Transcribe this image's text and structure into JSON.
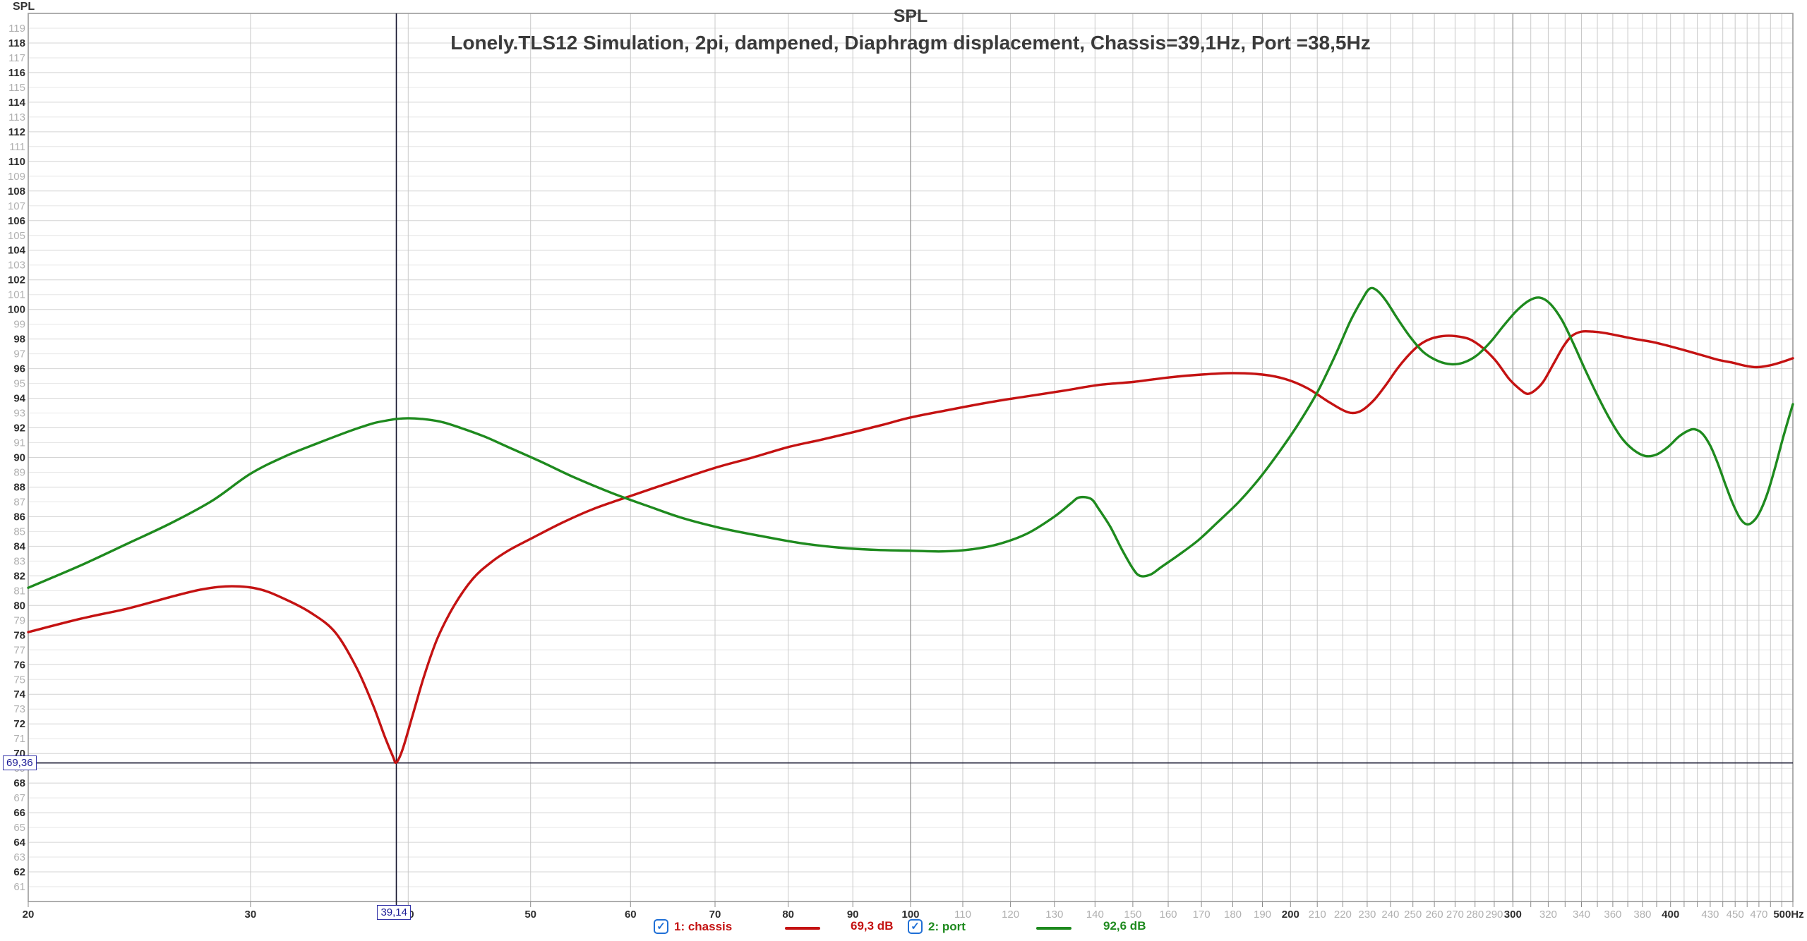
{
  "header": {
    "axis_unit_label": "SPL",
    "title": "SPL",
    "subtitle": "Lonely.TLS12 Simulation, 2pi, dampened, Diaphragm displacement, Chassis=39,1Hz, Port =38,5Hz"
  },
  "colors": {
    "chassis": "#c41212",
    "port": "#1e8a1e",
    "grid_light_h": "#e6e6e6",
    "grid_dark_h": "#d4d4d4",
    "grid_v": "#c9c9c9",
    "grid_v_major": "#9b9b9b",
    "border": "#9a9a9a",
    "cursor": "#15152e",
    "label_dark": "#2e2e2e",
    "label_gray": "#b0b0b0",
    "checkbox_blue": "#1f6fd6",
    "cursor_text": "#1c1c96",
    "title_color": "#3a3a3a"
  },
  "cursor": {
    "freq_hz": 39.14,
    "level_db": 69.36,
    "freq_label": "39,14",
    "level_label": "69,36"
  },
  "legend": [
    {
      "label": "1: chassis",
      "value": "69,3 dB",
      "checked": true
    },
    {
      "label": "2: port",
      "value": "92,6 dB",
      "checked": true
    }
  ],
  "chart_data": {
    "type": "line",
    "title": "SPL",
    "subtitle": "Lonely.TLS12 Simulation, 2pi, dampened, Diaphragm displacement, Chassis=39,1Hz, Port =38,5Hz",
    "xlabel": "Hz",
    "ylabel": "SPL",
    "x_scale": "log",
    "xlim": [
      20,
      500
    ],
    "ylim": [
      60,
      120
    ],
    "grid": true,
    "legend_position": "bottom",
    "y_ticks": [
      61,
      62,
      63,
      64,
      65,
      66,
      67,
      68,
      69,
      70,
      71,
      72,
      73,
      74,
      75,
      76,
      77,
      78,
      79,
      80,
      81,
      82,
      83,
      84,
      85,
      86,
      87,
      88,
      89,
      90,
      91,
      92,
      93,
      94,
      95,
      96,
      97,
      98,
      99,
      100,
      101,
      102,
      103,
      104,
      105,
      106,
      107,
      108,
      109,
      110,
      111,
      112,
      113,
      114,
      115,
      116,
      117,
      118,
      119
    ],
    "x_tick_labels": [
      {
        "f": 20,
        "t": "20",
        "dark": true
      },
      {
        "f": 30,
        "t": "30",
        "dark": true
      },
      {
        "f": 40,
        "t": "40",
        "dark": true
      },
      {
        "f": 50,
        "t": "50",
        "dark": true
      },
      {
        "f": 60,
        "t": "60",
        "dark": true
      },
      {
        "f": 70,
        "t": "70",
        "dark": true
      },
      {
        "f": 80,
        "t": "80",
        "dark": true
      },
      {
        "f": 90,
        "t": "90",
        "dark": true
      },
      {
        "f": 100,
        "t": "100",
        "dark": true
      },
      {
        "f": 110,
        "t": "110",
        "dark": false
      },
      {
        "f": 120,
        "t": "120",
        "dark": false
      },
      {
        "f": 130,
        "t": "130",
        "dark": false
      },
      {
        "f": 140,
        "t": "140",
        "dark": false
      },
      {
        "f": 150,
        "t": "150",
        "dark": false
      },
      {
        "f": 160,
        "t": "160",
        "dark": false
      },
      {
        "f": 170,
        "t": "170",
        "dark": false
      },
      {
        "f": 180,
        "t": "180",
        "dark": false
      },
      {
        "f": 190,
        "t": "190",
        "dark": false
      },
      {
        "f": 200,
        "t": "200",
        "dark": true
      },
      {
        "f": 210,
        "t": "210",
        "dark": false
      },
      {
        "f": 220,
        "t": "220",
        "dark": false
      },
      {
        "f": 230,
        "t": "230",
        "dark": false
      },
      {
        "f": 240,
        "t": "240",
        "dark": false
      },
      {
        "f": 250,
        "t": "250",
        "dark": false
      },
      {
        "f": 260,
        "t": "260",
        "dark": false
      },
      {
        "f": 270,
        "t": "270",
        "dark": false
      },
      {
        "f": 280,
        "t": "280",
        "dark": false
      },
      {
        "f": 290,
        "t": "290",
        "dark": false
      },
      {
        "f": 300,
        "t": "300",
        "dark": true
      },
      {
        "f": 320,
        "t": "320",
        "dark": false
      },
      {
        "f": 340,
        "t": "340",
        "dark": false
      },
      {
        "f": 360,
        "t": "360",
        "dark": false
      },
      {
        "f": 380,
        "t": "380",
        "dark": false
      },
      {
        "f": 400,
        "t": "400",
        "dark": true
      },
      {
        "f": 430,
        "t": "430",
        "dark": false
      },
      {
        "f": 450,
        "t": "450",
        "dark": false
      },
      {
        "f": 470,
        "t": "470",
        "dark": false
      },
      {
        "f": 500,
        "t": "500Hz",
        "dark": true
      }
    ],
    "x_gridlines": [
      30,
      40,
      50,
      60,
      70,
      80,
      90,
      100,
      110,
      120,
      130,
      140,
      150,
      160,
      170,
      180,
      190,
      200,
      210,
      220,
      230,
      240,
      250,
      260,
      270,
      280,
      290,
      300,
      310,
      320,
      330,
      340,
      350,
      360,
      370,
      380,
      390,
      400,
      410,
      420,
      430,
      440,
      450,
      460,
      470,
      480,
      490
    ],
    "x_gridlines_major": [
      100,
      300
    ],
    "cursor": {
      "freq_hz": 39.14,
      "level_db": 69.36
    },
    "series": [
      {
        "name": "1: chassis",
        "color": "#c41212",
        "cursor_value_db": 69.3,
        "points": [
          [
            20,
            78.2
          ],
          [
            22,
            79.1
          ],
          [
            24,
            79.8
          ],
          [
            26,
            80.6
          ],
          [
            27.5,
            81.1
          ],
          [
            29,
            81.3
          ],
          [
            30.5,
            81.1
          ],
          [
            32,
            80.4
          ],
          [
            33.5,
            79.5
          ],
          [
            35,
            78.2
          ],
          [
            36.4,
            75.8
          ],
          [
            37.5,
            73.3
          ],
          [
            38.3,
            71.2
          ],
          [
            38.9,
            69.8
          ],
          [
            39.14,
            69.4
          ],
          [
            39.6,
            70.3
          ],
          [
            40.3,
            72.5
          ],
          [
            41.2,
            75.3
          ],
          [
            42.2,
            77.8
          ],
          [
            43.5,
            80.0
          ],
          [
            45,
            81.8
          ],
          [
            46.5,
            82.9
          ],
          [
            48,
            83.7
          ],
          [
            50,
            84.5
          ],
          [
            53,
            85.6
          ],
          [
            56,
            86.5
          ],
          [
            60,
            87.4
          ],
          [
            65,
            88.4
          ],
          [
            70,
            89.3
          ],
          [
            75,
            90.0
          ],
          [
            80,
            90.7
          ],
          [
            85,
            91.2
          ],
          [
            90,
            91.7
          ],
          [
            95,
            92.2
          ],
          [
            100,
            92.7
          ],
          [
            107,
            93.2
          ],
          [
            115,
            93.7
          ],
          [
            123,
            94.1
          ],
          [
            132,
            94.5
          ],
          [
            141,
            94.9
          ],
          [
            150,
            95.1
          ],
          [
            160,
            95.4
          ],
          [
            170,
            95.6
          ],
          [
            180,
            95.7
          ],
          [
            190,
            95.6
          ],
          [
            198,
            95.3
          ],
          [
            206,
            94.7
          ],
          [
            214,
            93.8
          ],
          [
            220,
            93.2
          ],
          [
            224,
            93.0
          ],
          [
            228,
            93.2
          ],
          [
            233,
            93.9
          ],
          [
            238,
            94.9
          ],
          [
            243,
            96.0
          ],
          [
            248,
            96.9
          ],
          [
            253,
            97.6
          ],
          [
            258,
            98.0
          ],
          [
            264,
            98.2
          ],
          [
            270,
            98.2
          ],
          [
            277,
            98.0
          ],
          [
            284,
            97.4
          ],
          [
            291,
            96.5
          ],
          [
            298,
            95.3
          ],
          [
            304,
            94.6
          ],
          [
            308,
            94.3
          ],
          [
            312,
            94.5
          ],
          [
            317,
            95.1
          ],
          [
            323,
            96.3
          ],
          [
            329,
            97.5
          ],
          [
            334,
            98.2
          ],
          [
            340,
            98.5
          ],
          [
            347,
            98.5
          ],
          [
            355,
            98.4
          ],
          [
            365,
            98.2
          ],
          [
            375,
            98.0
          ],
          [
            387,
            97.8
          ],
          [
            400,
            97.5
          ],
          [
            412,
            97.2
          ],
          [
            424,
            96.9
          ],
          [
            436,
            96.6
          ],
          [
            448,
            96.4
          ],
          [
            458,
            96.2
          ],
          [
            468,
            96.1
          ],
          [
            478,
            96.2
          ],
          [
            488,
            96.4
          ],
          [
            500,
            96.7
          ]
        ]
      },
      {
        "name": "2: port",
        "color": "#1e8a1e",
        "cursor_value_db": 92.6,
        "points": [
          [
            20,
            81.2
          ],
          [
            22,
            82.7
          ],
          [
            24,
            84.2
          ],
          [
            26,
            85.6
          ],
          [
            28,
            87.1
          ],
          [
            30,
            88.9
          ],
          [
            32,
            90.1
          ],
          [
            34,
            91.0
          ],
          [
            36,
            91.8
          ],
          [
            37.5,
            92.3
          ],
          [
            38.5,
            92.5
          ],
          [
            39.14,
            92.6
          ],
          [
            40,
            92.65
          ],
          [
            41,
            92.6
          ],
          [
            42.5,
            92.4
          ],
          [
            44,
            92.0
          ],
          [
            46,
            91.4
          ],
          [
            48,
            90.7
          ],
          [
            51,
            89.7
          ],
          [
            54,
            88.7
          ],
          [
            58,
            87.6
          ],
          [
            62,
            86.7
          ],
          [
            66,
            85.9
          ],
          [
            71,
            85.2
          ],
          [
            76,
            84.7
          ],
          [
            82,
            84.2
          ],
          [
            88,
            83.9
          ],
          [
            94,
            83.75
          ],
          [
            100,
            83.7
          ],
          [
            106,
            83.65
          ],
          [
            112,
            83.8
          ],
          [
            118,
            84.2
          ],
          [
            124,
            84.9
          ],
          [
            130,
            86.0
          ],
          [
            134,
            86.9
          ],
          [
            136,
            87.3
          ],
          [
            139,
            87.2
          ],
          [
            141,
            86.5
          ],
          [
            144,
            85.3
          ],
          [
            147,
            83.8
          ],
          [
            150,
            82.5
          ],
          [
            152,
            82.0
          ],
          [
            155,
            82.1
          ],
          [
            158,
            82.6
          ],
          [
            163,
            83.4
          ],
          [
            169,
            84.4
          ],
          [
            175,
            85.6
          ],
          [
            182,
            87.0
          ],
          [
            189,
            88.6
          ],
          [
            196,
            90.4
          ],
          [
            203,
            92.3
          ],
          [
            210,
            94.4
          ],
          [
            217,
            96.9
          ],
          [
            223,
            99.2
          ],
          [
            228,
            100.7
          ],
          [
            231,
            101.4
          ],
          [
            234,
            101.3
          ],
          [
            238,
            100.6
          ],
          [
            243,
            99.4
          ],
          [
            249,
            98.1
          ],
          [
            255,
            97.1
          ],
          [
            262,
            96.5
          ],
          [
            268,
            96.3
          ],
          [
            274,
            96.4
          ],
          [
            281,
            96.9
          ],
          [
            288,
            97.8
          ],
          [
            295,
            98.9
          ],
          [
            302,
            99.9
          ],
          [
            309,
            100.6
          ],
          [
            315,
            100.8
          ],
          [
            321,
            100.4
          ],
          [
            328,
            99.3
          ],
          [
            335,
            97.7
          ],
          [
            342,
            96.0
          ],
          [
            350,
            94.2
          ],
          [
            358,
            92.6
          ],
          [
            366,
            91.3
          ],
          [
            374,
            90.5
          ],
          [
            382,
            90.1
          ],
          [
            390,
            90.2
          ],
          [
            398,
            90.7
          ],
          [
            406,
            91.4
          ],
          [
            413,
            91.8
          ],
          [
            418,
            91.9
          ],
          [
            424,
            91.6
          ],
          [
            430,
            90.8
          ],
          [
            436,
            89.6
          ],
          [
            442,
            88.2
          ],
          [
            448,
            86.9
          ],
          [
            454,
            85.9
          ],
          [
            459,
            85.5
          ],
          [
            464,
            85.6
          ],
          [
            470,
            86.2
          ],
          [
            477,
            87.5
          ],
          [
            484,
            89.3
          ],
          [
            491,
            91.3
          ],
          [
            500,
            93.6
          ]
        ]
      }
    ]
  }
}
